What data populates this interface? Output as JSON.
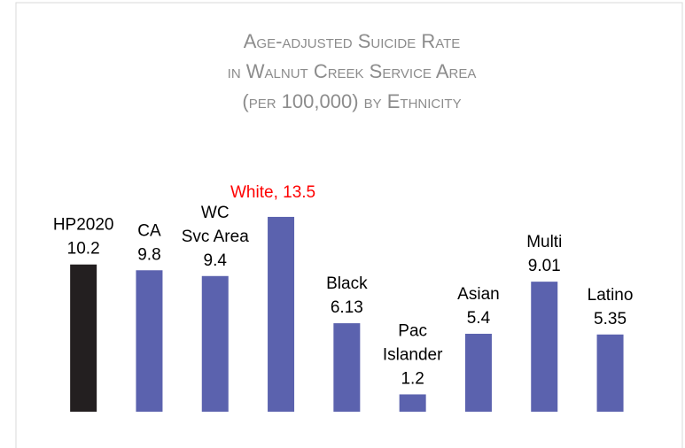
{
  "chart_data": {
    "type": "bar",
    "title": [
      "Age-adjusted Suicide Rate",
      "in Walnut Creek Service Area",
      "(per 100,000) by Ethnicity"
    ],
    "categories": [
      [
        "HP2020"
      ],
      [
        "CA"
      ],
      [
        "WC",
        "Svc Area"
      ],
      [
        "White"
      ],
      [
        "Black"
      ],
      [
        "Pac",
        "Islander"
      ],
      [
        "Asian"
      ],
      [
        "Multi"
      ],
      [
        "Latino"
      ]
    ],
    "values": [
      10.2,
      9.8,
      9.4,
      13.5,
      6.13,
      1.2,
      5.4,
      9.01,
      5.35
    ],
    "colors": [
      "#231f20",
      "#5b62ae",
      "#5b62ae",
      "#5b62ae",
      "#5b62ae",
      "#5b62ae",
      "#5b62ae",
      "#5b62ae",
      "#5b62ae"
    ],
    "highlight": {
      "index": 3,
      "color": "#ff0000",
      "separator": ", "
    },
    "ylim": [
      0,
      15
    ],
    "grid": false
  }
}
